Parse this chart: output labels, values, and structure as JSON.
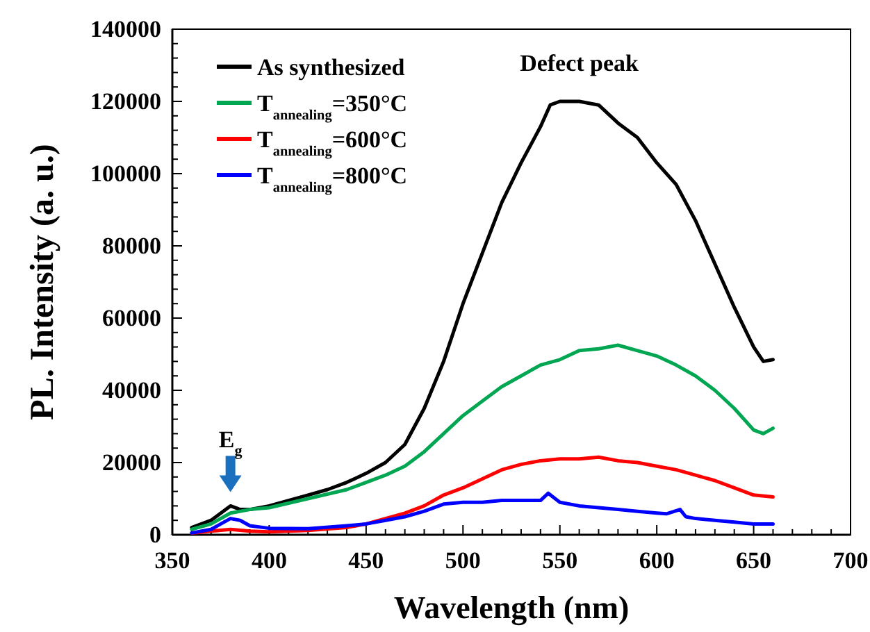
{
  "chart_data": {
    "type": "line",
    "xlabel": "Wavelength (nm)",
    "ylabel": "PL. Intensity (a. u.)",
    "xlim": [
      350,
      700
    ],
    "ylim": [
      0,
      140000
    ],
    "xticks": [
      350,
      {
        "value": 360,
        "label": null
      },
      {
        "value": 370,
        "label": null
      },
      {
        "value": 380,
        "label": null
      },
      {
        "value": 390,
        "label": null
      },
      400,
      {
        "value": 410,
        "label": null
      },
      {
        "value": 420,
        "label": null
      },
      {
        "value": 430,
        "label": null
      },
      {
        "value": 440,
        "label": null
      },
      450,
      {
        "value": 460,
        "label": null
      },
      {
        "value": 470,
        "label": null
      },
      {
        "value": 480,
        "label": null
      },
      {
        "value": 490,
        "label": null
      },
      500,
      {
        "value": 510,
        "label": null
      },
      {
        "value": 520,
        "label": null
      },
      {
        "value": 530,
        "label": null
      },
      {
        "value": 540,
        "label": null
      },
      550,
      {
        "value": 560,
        "label": null
      },
      {
        "value": 570,
        "label": null
      },
      {
        "value": 580,
        "label": null
      },
      {
        "value": 590,
        "label": null
      },
      600,
      {
        "value": 610,
        "label": null
      },
      {
        "value": 620,
        "label": null
      },
      {
        "value": 630,
        "label": null
      },
      {
        "value": 640,
        "label": null
      },
      650,
      {
        "value": 660,
        "label": null
      },
      {
        "value": 670,
        "label": null
      },
      {
        "value": 680,
        "label": null
      },
      {
        "value": 690,
        "label": null
      },
      700
    ],
    "yticks": [
      0,
      {
        "value": 4000,
        "label": null
      },
      {
        "value": 8000,
        "label": null
      },
      {
        "value": 12000,
        "label": null
      },
      {
        "value": 16000,
        "label": null
      },
      20000,
      {
        "value": 24000,
        "label": null
      },
      {
        "value": 28000,
        "label": null
      },
      {
        "value": 32000,
        "label": null
      },
      {
        "value": 36000,
        "label": null
      },
      40000,
      {
        "value": 44000,
        "label": null
      },
      {
        "value": 48000,
        "label": null
      },
      {
        "value": 52000,
        "label": null
      },
      {
        "value": 56000,
        "label": null
      },
      60000,
      {
        "value": 64000,
        "label": null
      },
      {
        "value": 68000,
        "label": null
      },
      {
        "value": 72000,
        "label": null
      },
      {
        "value": 76000,
        "label": null
      },
      80000,
      {
        "value": 84000,
        "label": null
      },
      {
        "value": 88000,
        "label": null
      },
      {
        "value": 92000,
        "label": null
      },
      {
        "value": 96000,
        "label": null
      },
      100000,
      {
        "value": 104000,
        "label": null
      },
      {
        "value": 108000,
        "label": null
      },
      {
        "value": 112000,
        "label": null
      },
      {
        "value": 116000,
        "label": null
      },
      120000,
      {
        "value": 124000,
        "label": null
      },
      {
        "value": 128000,
        "label": null
      },
      {
        "value": 132000,
        "label": null
      },
      {
        "value": 136000,
        "label": null
      },
      140000
    ],
    "grid": false,
    "legend": "top left",
    "marker": "none",
    "line_style": "solid",
    "annotations": [
      {
        "text": "Defect peak",
        "x": 560,
        "y": 120000
      },
      {
        "text": "E$_{g}$",
        "x": 380,
        "y": 8000
      }
    ],
    "series": [
      {
        "name": "As synthesized",
        "color": "#000000",
        "x": [
          360,
          370,
          380,
          385,
          390,
          400,
          410,
          420,
          430,
          440,
          450,
          460,
          470,
          480,
          490,
          500,
          510,
          520,
          530,
          540,
          545,
          550,
          560,
          570,
          580,
          590,
          600,
          610,
          620,
          630,
          640,
          650,
          655,
          660
        ],
        "values": [
          2000,
          4000,
          8000,
          7000,
          7000,
          8000,
          9500,
          11000,
          12500,
          14500,
          17000,
          20000,
          25000,
          35000,
          48000,
          64000,
          78000,
          92000,
          103000,
          113000,
          119000,
          120000,
          120000,
          119000,
          114000,
          110000,
          103000,
          97000,
          87000,
          75000,
          63000,
          52000,
          48000,
          48500
        ]
      },
      {
        "name": "T$_{annealing}$=350°C",
        "color": "#00a651",
        "x": [
          360,
          370,
          380,
          390,
          400,
          420,
          440,
          450,
          460,
          470,
          480,
          490,
          500,
          510,
          520,
          530,
          540,
          550,
          560,
          570,
          580,
          590,
          600,
          610,
          620,
          630,
          640,
          650,
          655,
          660
        ],
        "values": [
          1500,
          3000,
          6000,
          7000,
          7500,
          10000,
          12500,
          14500,
          16500,
          19000,
          23000,
          28000,
          33000,
          37000,
          41000,
          44000,
          47000,
          48500,
          51000,
          51500,
          52500,
          51000,
          49500,
          47000,
          44000,
          40000,
          35000,
          29000,
          28000,
          29500
        ]
      },
      {
        "name": "T$_{annealing}$=600°C",
        "color": "#ff0000",
        "x": [
          360,
          370,
          380,
          390,
          400,
          420,
          440,
          450,
          460,
          470,
          480,
          490,
          500,
          510,
          520,
          530,
          540,
          550,
          560,
          570,
          580,
          590,
          600,
          610,
          620,
          630,
          640,
          650,
          660
        ],
        "values": [
          500,
          1000,
          1500,
          1000,
          800,
          1200,
          2000,
          3000,
          4500,
          6000,
          8000,
          11000,
          13000,
          15500,
          18000,
          19500,
          20500,
          21000,
          21000,
          21500,
          20500,
          20000,
          19000,
          18000,
          16500,
          15000,
          13000,
          11000,
          10500
        ]
      },
      {
        "name": "T$_{annealing}$=800°C",
        "color": "#0000ff",
        "x": [
          360,
          370,
          375,
          380,
          385,
          390,
          400,
          420,
          440,
          450,
          460,
          470,
          480,
          490,
          500,
          510,
          520,
          530,
          540,
          544,
          550,
          560,
          570,
          580,
          590,
          600,
          605,
          612,
          615,
          620,
          630,
          640,
          650,
          660
        ],
        "values": [
          500,
          1500,
          3000,
          4500,
          4000,
          2500,
          1800,
          1700,
          2500,
          3000,
          4000,
          5000,
          6500,
          8500,
          9000,
          9000,
          9500,
          9500,
          9500,
          11500,
          9000,
          8000,
          7500,
          7000,
          6500,
          6000,
          5800,
          7000,
          5000,
          4500,
          4000,
          3500,
          3000,
          3000
        ]
      }
    ]
  }
}
